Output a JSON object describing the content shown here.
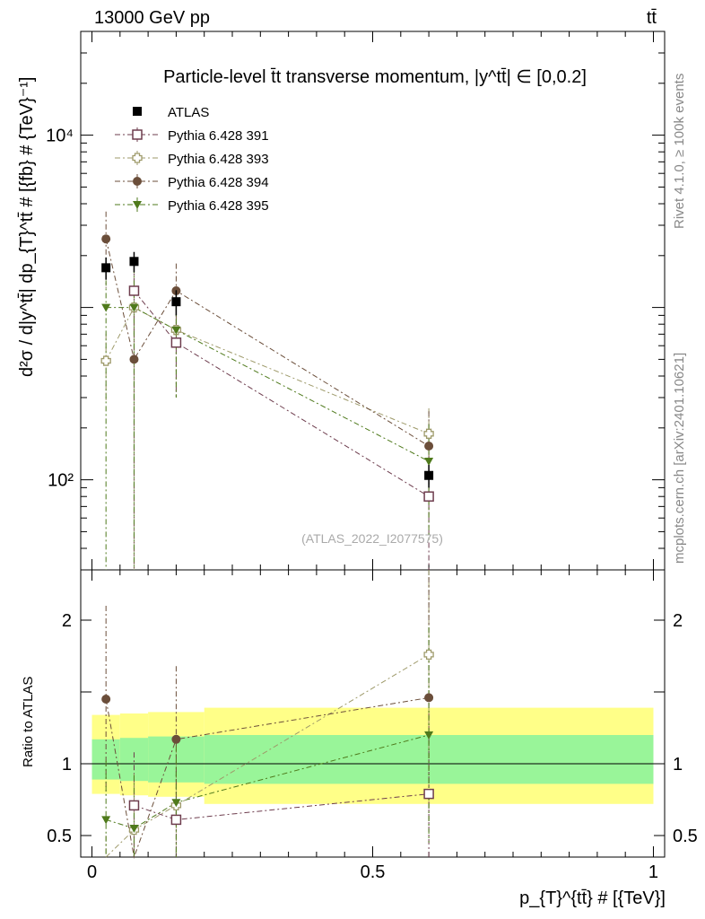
{
  "header": {
    "left": "13000 GeV pp",
    "right": "tt̄"
  },
  "side_texts": {
    "rivet": "Rivet 4.1.0, ≥ 100k events",
    "mcplots": "mcplots.cern.ch [arXiv:2401.10621]"
  },
  "chart_data": {
    "type": "scatter",
    "title": "Particle-level t̄t transverse momentum, |y^tt̄| ∈ [0,0.2]",
    "xlabel": "p_{T}^{tt̄} # [{TeV}]",
    "ylabel": "d²σ / d|y^tt̄| dp_{T}^tt̄ # [{fb} # {TeV}⁻¹]",
    "ratio_ylabel": "Ratio to ATLAS",
    "watermark": "(ATLAS_2022_I2077575)",
    "xlim": [
      -0.02,
      1.02
    ],
    "ylim": [
      30,
      40000
    ],
    "ratio_ylim": [
      0.35,
      2.35
    ],
    "x_ticks": [
      0,
      0.5,
      1
    ],
    "x_tick_labels": [
      "0",
      "0.5",
      "1"
    ],
    "y_ticks": [
      100,
      10000
    ],
    "y_tick_labels": [
      "10²",
      "10⁴"
    ],
    "ratio_ticks": [
      0.5,
      1,
      2
    ],
    "ratio_tick_labels": [
      "0.5",
      "1",
      "2"
    ],
    "bins": [
      [
        0,
        0.05
      ],
      [
        0.05,
        0.1
      ],
      [
        0.1,
        0.2
      ],
      [
        0.2,
        1.0
      ]
    ],
    "band_outer": [
      [
        0.79,
        1.34
      ],
      [
        0.78,
        1.35
      ],
      [
        0.77,
        1.36
      ],
      [
        0.72,
        1.39
      ]
    ],
    "band_inner": [
      [
        0.89,
        1.17
      ],
      [
        0.88,
        1.18
      ],
      [
        0.87,
        1.19
      ],
      [
        0.86,
        1.2
      ]
    ],
    "x": [
      0.025,
      0.075,
      0.15,
      0.6
    ],
    "data": {
      "name": "ATLAS",
      "values": [
        1700,
        1850,
        1080,
        106
      ],
      "yerr": [
        [
          1450,
          1950
        ],
        [
          1600,
          2100
        ],
        [
          900,
          1260
        ],
        [
          90,
          122
        ]
      ]
    },
    "series": [
      {
        "name": "Pythia 6.428 391",
        "color": "#6e3d4e",
        "marker": "open-square",
        "x": [
          0.075,
          0.15,
          0.6
        ],
        "values": [
          1250,
          625,
          80
        ],
        "yerr": [
          [
            700,
            1750
          ],
          [
            300,
            950
          ],
          [
            20,
            140
          ]
        ],
        "ratio": [
          0.71,
          0.61,
          0.79
        ],
        "ratio_err": [
          [
            0.35,
            1.08
          ],
          [
            0.27,
            0.95
          ],
          [
            0.2,
            1.35
          ]
        ]
      },
      {
        "name": "Pythia 6.428 393",
        "color": "#9e9a6a",
        "marker": "open-cross",
        "x": [
          0.025,
          0.075,
          0.15,
          0.6
        ],
        "values": [
          490,
          1000,
          740,
          185
        ],
        "yerr": [
          [
            290,
            700
          ],
          [
            290,
            1700
          ],
          [
            300,
            1200
          ],
          [
            110,
            260
          ]
        ],
        "ratio": [
          0.3,
          0.54,
          0.71,
          1.76
        ],
        "ratio_err": [
          [
            0.1,
            0.5
          ],
          [
            0.17,
            0.93
          ],
          [
            0.29,
            1.11
          ],
          [
            1.05,
            2.35
          ]
        ]
      },
      {
        "name": "Pythia 6.428 394",
        "color": "#6b4e3a",
        "marker": "filled-circle",
        "x": [
          0.025,
          0.075,
          0.15,
          0.6
        ],
        "values": [
          2500,
          500,
          1250,
          157
        ],
        "yerr": [
          [
            1300,
            3600
          ],
          [
            30,
            1000
          ],
          [
            700,
            1800
          ],
          [
            60,
            250
          ]
        ],
        "ratio": [
          1.45,
          0.27,
          1.17,
          1.46
        ],
        "ratio_err": [
          [
            0.78,
            2.1
          ],
          [
            0.02,
            0.55
          ],
          [
            0.62,
            1.68
          ],
          [
            0.55,
            2.3
          ]
        ]
      },
      {
        "name": "Pythia 6.428 395",
        "color": "#4f7a1c",
        "marker": "filled-triangle-down",
        "x": [
          0.025,
          0.075,
          0.15,
          0.6
        ],
        "values": [
          1000,
          1000,
          740,
          128
        ],
        "yerr": [
          [
            30,
            1700
          ],
          [
            30,
            1700
          ],
          [
            300,
            1200
          ],
          [
            45,
            210
          ]
        ],
        "ratio": [
          0.61,
          0.55,
          0.73,
          1.2
        ],
        "ratio_err": [
          [
            0.02,
            1.02
          ],
          [
            0.02,
            0.92
          ],
          [
            0.3,
            1.12
          ],
          [
            0.45,
            1.95
          ]
        ]
      }
    ]
  }
}
